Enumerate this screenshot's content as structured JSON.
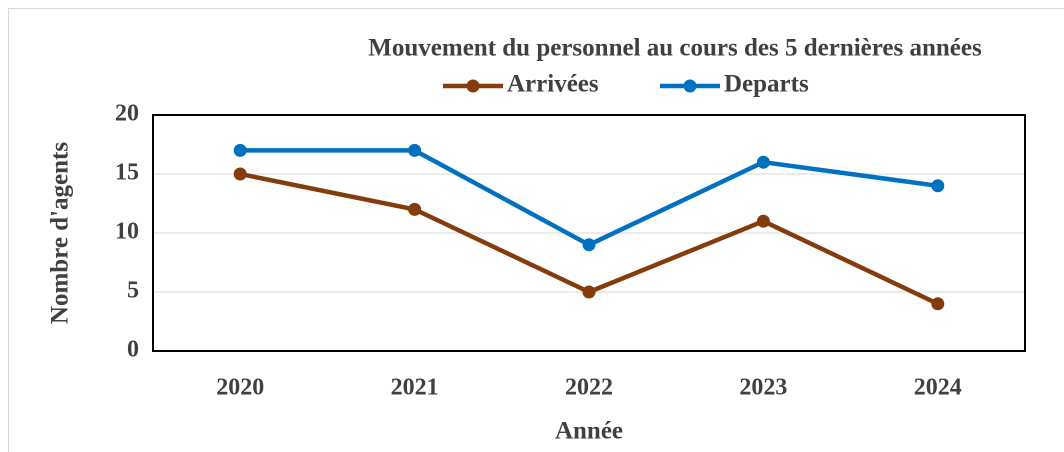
{
  "chart_data": {
    "type": "line",
    "title": "Mouvement du personnel au cours des 5 dernières années",
    "x_label": "Année",
    "y_label": "Nombre d'agents",
    "categories": [
      "2020",
      "2021",
      "2022",
      "2023",
      "2024"
    ],
    "series": [
      {
        "name": "Arrivées",
        "color": "#843c0c",
        "values": [
          15,
          12,
          5,
          11,
          4
        ]
      },
      {
        "name": "Departs",
        "color": "#0070c0",
        "values": [
          17,
          17,
          9,
          16,
          14
        ]
      }
    ],
    "ylim": [
      0,
      20
    ],
    "yticks": [
      0,
      5,
      10,
      15,
      20
    ],
    "grid": true,
    "legend": "top"
  }
}
